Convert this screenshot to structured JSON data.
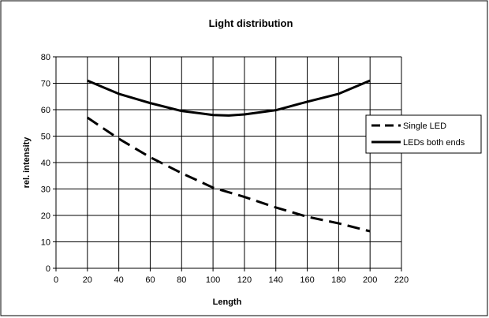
{
  "chart_data": {
    "type": "line",
    "title": "Light distribution",
    "xlabel": "Length",
    "ylabel": "rel. intensity",
    "xlim": [
      0,
      220
    ],
    "ylim": [
      0,
      80
    ],
    "x_ticks": [
      0,
      20,
      40,
      60,
      80,
      100,
      120,
      140,
      160,
      180,
      200,
      220
    ],
    "y_ticks": [
      0,
      10,
      20,
      30,
      40,
      50,
      60,
      70,
      80
    ],
    "grid": true,
    "legend_position": "right",
    "series": [
      {
        "name": "Single LED",
        "style": "dashed",
        "color": "#000000",
        "x": [
          20,
          40,
          60,
          80,
          100,
          120,
          140,
          160,
          180,
          200
        ],
        "y": [
          57,
          49,
          42,
          36,
          30.5,
          27,
          23,
          19.5,
          17,
          14
        ]
      },
      {
        "name": "LEDs both ends",
        "style": "solid",
        "color": "#000000",
        "x": [
          20,
          40,
          60,
          80,
          100,
          110,
          120,
          140,
          160,
          180,
          200
        ],
        "y": [
          71,
          66,
          62.5,
          59.5,
          58,
          57.8,
          58.2,
          59.8,
          63,
          66,
          71
        ]
      }
    ]
  }
}
